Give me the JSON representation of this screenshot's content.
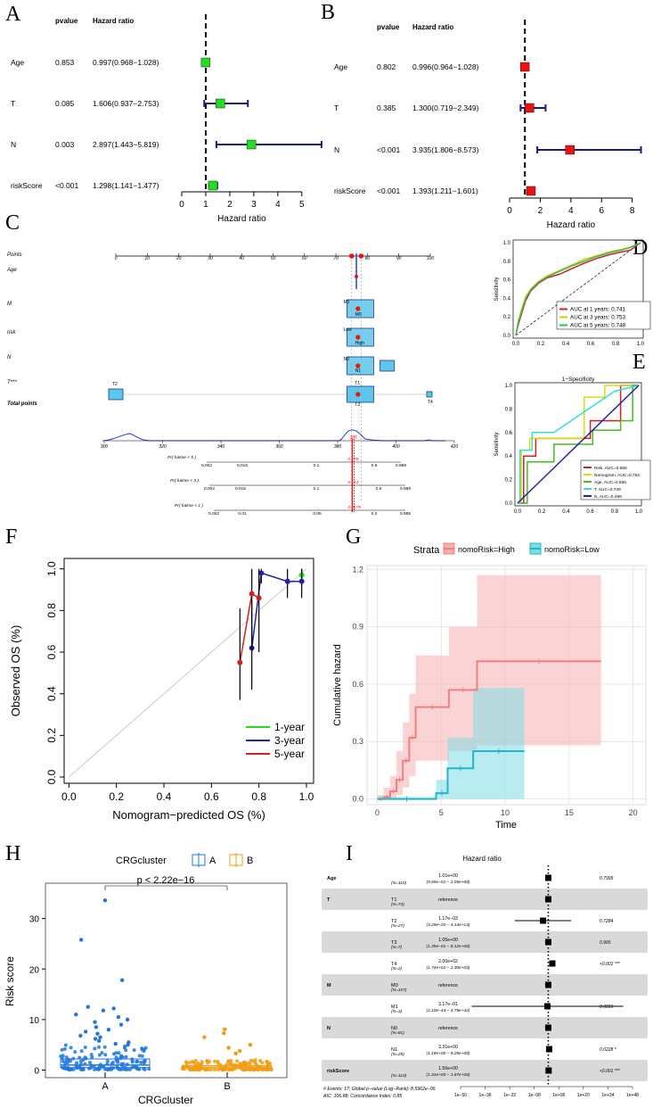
{
  "figure_labels": [
    "A",
    "B",
    "C",
    "D",
    "E",
    "F",
    "G",
    "H",
    "I"
  ],
  "chart_data": [
    {
      "panel": "A",
      "type": "forest",
      "header_pvalue": "pvalue",
      "header_hr": "Hazard ratio",
      "xlabel": "Hazard ratio",
      "xlim": [
        0,
        5.6
      ],
      "ticks": [
        "0",
        "1",
        "2",
        "3",
        "4",
        "5"
      ],
      "ref_line": 1,
      "rows": [
        {
          "label": "Age",
          "pvalue": "0.853",
          "hr_text": "0.997(0.968−1.028)",
          "hr": 0.997,
          "lo": 0.968,
          "hi": 1.028
        },
        {
          "label": "T",
          "pvalue": "0.085",
          "hr_text": "1.606(0.937−2.753)",
          "hr": 1.606,
          "lo": 0.937,
          "hi": 2.753
        },
        {
          "label": "N",
          "pvalue": "0.003",
          "hr_text": "2.897(1.443−5.819)",
          "hr": 2.897,
          "lo": 1.443,
          "hi": 5.819
        },
        {
          "label": "riskScore",
          "pvalue": "<0.001",
          "hr_text": "1.298(1.141−1.477)",
          "hr": 1.298,
          "lo": 1.141,
          "hi": 1.477
        }
      ],
      "color": "#22dd22"
    },
    {
      "panel": "B",
      "type": "forest",
      "header_pvalue": "pvalue",
      "header_hr": "Hazard ratio",
      "xlabel": "Hazard ratio",
      "xlim": [
        0,
        8.6
      ],
      "ticks": [
        "0",
        "2",
        "4",
        "6",
        "8"
      ],
      "ref_line": 1,
      "rows": [
        {
          "label": "Age",
          "pvalue": "0.802",
          "hr_text": "0.996(0.964−1.028)",
          "hr": 0.996,
          "lo": 0.964,
          "hi": 1.028
        },
        {
          "label": "T",
          "pvalue": "0.385",
          "hr_text": "1.300(0.719−2.349)",
          "hr": 1.3,
          "lo": 0.719,
          "hi": 2.349
        },
        {
          "label": "N",
          "pvalue": "<0.001",
          "hr_text": "3.935(1.806−8.573)",
          "hr": 3.935,
          "lo": 1.806,
          "hi": 8.573
        },
        {
          "label": "riskScore",
          "pvalue": "<0.001",
          "hr_text": "1.393(1.211−1.601)",
          "hr": 1.393,
          "lo": 1.211,
          "hi": 1.601
        }
      ],
      "color": "#ee1111"
    },
    {
      "panel": "C",
      "type": "nomogram",
      "rows": [
        "Points",
        "Age",
        "M",
        "risk",
        "N",
        "T***",
        "Total points"
      ],
      "points_ticks": [
        "0",
        "10",
        "20",
        "30",
        "40",
        "50",
        "60",
        "70",
        "80",
        "90",
        "100"
      ],
      "total_ticks": [
        "300",
        "320",
        "340",
        "360",
        "380",
        "400",
        "420"
      ],
      "total_value": "385",
      "level_labels": {
        "M": [
          "M1",
          "M0"
        ],
        "risk": [
          "Low",
          "High"
        ],
        "N": [
          "N0",
          "N1"
        ],
        "T": [
          "T2",
          "T1",
          "T3",
          "T4"
        ]
      },
      "prob_rows": [
        {
          "label": "Pr( futime < 5 )",
          "ticks": [
            "0.002",
            "0.015",
            "0.1",
            "0.6",
            "0.998"
          ],
          "value": "0.178"
        },
        {
          "label": "Pr( futime < 3 )",
          "ticks": [
            "0.002",
            "0.015",
            "0.1",
            "0.6",
            "0.998"
          ],
          "value": "0.133"
        },
        {
          "label": "Pr( futime < 1 )",
          "ticks": [
            "0.002",
            "0.01",
            "0.06",
            "0.4",
            "0.985"
          ],
          "value": "0.0179"
        }
      ]
    },
    {
      "panel": "D",
      "type": "line",
      "xlabel": "1−Specificity",
      "ylabel": "Sensitivity",
      "xlim": [
        0,
        1
      ],
      "ylim": [
        0,
        1
      ],
      "ticks": [
        "0.0",
        "0.2",
        "0.4",
        "0.6",
        "0.8",
        "1.0"
      ],
      "legend_position": "bottom-right",
      "series": [
        {
          "name": "AUC at 1 years: 0.741",
          "color": "#cc2222",
          "x": [
            0,
            0.02,
            0.05,
            0.08,
            0.12,
            0.18,
            0.25,
            0.35,
            0.45,
            0.55,
            0.65,
            0.75,
            0.85,
            0.92,
            1.0
          ],
          "y": [
            0,
            0.12,
            0.25,
            0.38,
            0.48,
            0.56,
            0.62,
            0.66,
            0.72,
            0.78,
            0.83,
            0.87,
            0.9,
            0.92,
            1.0
          ]
        },
        {
          "name": "AUC at 3 years: 0.753",
          "color": "#cccc00",
          "x": [
            0,
            0.02,
            0.05,
            0.08,
            0.12,
            0.18,
            0.25,
            0.35,
            0.45,
            0.55,
            0.65,
            0.75,
            0.85,
            0.92,
            1.0
          ],
          "y": [
            0,
            0.16,
            0.3,
            0.42,
            0.5,
            0.58,
            0.64,
            0.7,
            0.76,
            0.82,
            0.86,
            0.9,
            0.93,
            0.95,
            1.0
          ]
        },
        {
          "name": "AUC at 5 years: 0.748",
          "color": "#33bb66",
          "x": [
            0,
            0.02,
            0.05,
            0.08,
            0.12,
            0.18,
            0.25,
            0.35,
            0.45,
            0.55,
            0.65,
            0.75,
            0.85,
            0.92,
            1.0
          ],
          "y": [
            0,
            0.14,
            0.27,
            0.4,
            0.49,
            0.57,
            0.63,
            0.69,
            0.75,
            0.8,
            0.85,
            0.89,
            0.92,
            0.95,
            1.0
          ]
        }
      ]
    },
    {
      "panel": "E",
      "type": "line",
      "title": "1−Specificity",
      "xlabel": "1−Specificity",
      "ylabel": "Sensitivity",
      "xlim": [
        0,
        1
      ],
      "ylim": [
        0,
        1
      ],
      "ticks": [
        "0.0",
        "0.2",
        "0.4",
        "0.6",
        "0.8",
        "1.0"
      ],
      "legend_position": "bottom-right",
      "series": [
        {
          "name": "Risk, AUC=0.665",
          "color": "#cc2222",
          "x": [
            0,
            0.05,
            0.05,
            0.15,
            0.15,
            0.6,
            0.6,
            0.85,
            0.85,
            1.0
          ],
          "y": [
            0,
            0,
            0.4,
            0.4,
            0.55,
            0.55,
            0.7,
            0.7,
            1.0,
            1.0
          ]
        },
        {
          "name": "Nomogram, AUC=0.752",
          "color": "#dddd00",
          "x": [
            0,
            0.03,
            0.03,
            0.1,
            0.1,
            0.55,
            0.55,
            0.72,
            0.72,
            1.0
          ],
          "y": [
            0,
            0,
            0.45,
            0.45,
            0.55,
            0.55,
            0.9,
            0.9,
            1.0,
            1.0
          ]
        },
        {
          "name": "Age, AUC=0.595",
          "color": "#44bb22",
          "x": [
            0,
            0.08,
            0.08,
            0.3,
            0.3,
            0.62,
            0.62,
            0.85,
            0.85,
            0.95,
            0.95,
            1.0
          ],
          "y": [
            0,
            0,
            0.35,
            0.35,
            0.5,
            0.5,
            0.62,
            0.62,
            0.7,
            0.7,
            1.0,
            1.0
          ]
        },
        {
          "name": "T, AUC=0.739",
          "color": "#33dddd",
          "x": [
            0,
            0.02,
            0.02,
            0.12,
            0.12,
            0.3,
            0.8,
            1.0
          ],
          "y": [
            0,
            0,
            0.45,
            0.45,
            0.6,
            0.6,
            0.95,
            1.0
          ]
        },
        {
          "name": "N, AUC=0.499",
          "color": "#2222aa",
          "x": [
            0,
            1.0
          ],
          "y": [
            0,
            1.0
          ]
        }
      ]
    },
    {
      "panel": "F",
      "type": "line",
      "xlabel": "Nomogram−predicted OS (%)",
      "ylabel": "Observed OS (%)",
      "xlim": [
        -0.02,
        1.03
      ],
      "ylim": [
        -0.03,
        1.05
      ],
      "xticks": [
        "0.0",
        "0.2",
        "0.4",
        "0.6",
        "0.8",
        "1.0"
      ],
      "yticks": [
        "0.0",
        "0.2",
        "0.4",
        "0.6",
        "0.8",
        "1.0"
      ],
      "legend_position": "bottom-right",
      "series": [
        {
          "name": "1-year",
          "color": "#22dd22",
          "x": [
            0.98
          ],
          "y": [
            0.97
          ],
          "lo": [
            0.92
          ],
          "hi": [
            1.0
          ]
        },
        {
          "name": "3-year",
          "color": "#2222aa",
          "x": [
            0.77,
            0.81,
            0.92,
            0.98
          ],
          "y": [
            0.62,
            0.98,
            0.94,
            0.94
          ],
          "lo": [
            0.42,
            0.93,
            0.86,
            0.86
          ],
          "hi": [
            0.85,
            1.0,
            1.0,
            1.0
          ]
        },
        {
          "name": "5-year",
          "color": "#cc2222",
          "x": [
            0.72,
            0.77,
            0.8
          ],
          "y": [
            0.55,
            0.88,
            0.86
          ],
          "lo": [
            0.37,
            0.6,
            0.6
          ],
          "hi": [
            0.81,
            1.0,
            1.0
          ]
        }
      ]
    },
    {
      "panel": "G",
      "type": "line",
      "legend_title": "Strata",
      "xlabel": "Time",
      "ylabel": "Cumulative hazard",
      "xlim": [
        -0.8,
        21
      ],
      "ylim": [
        -0.03,
        1.22
      ],
      "xticks": [
        "0",
        "5",
        "10",
        "15",
        "20"
      ],
      "yticks": [
        "0.0",
        "0.3",
        "0.6",
        "0.9",
        "1.2"
      ],
      "series": [
        {
          "name": "nomoRisk=High",
          "color": "#f08080",
          "fill": "#f6b0b0",
          "x": [
            0,
            0.5,
            1,
            1.5,
            2,
            2.5,
            3,
            5.6,
            7.8,
            17.5
          ],
          "y": [
            0,
            0.01,
            0.04,
            0.1,
            0.2,
            0.32,
            0.48,
            0.57,
            0.72,
            0.72
          ],
          "lo": [
            0,
            0,
            0,
            0.02,
            0.06,
            0.12,
            0.2,
            0.25,
            0.28,
            0.28
          ],
          "hi": [
            0.02,
            0.06,
            0.12,
            0.25,
            0.4,
            0.55,
            0.75,
            0.9,
            1.17,
            1.17
          ]
        },
        {
          "name": "nomoRisk=Low",
          "color": "#20b8c8",
          "fill": "#7fdde4",
          "x": [
            0,
            4.6,
            5.5,
            7.5,
            11.5
          ],
          "y": [
            0,
            0.03,
            0.16,
            0.25,
            0.25
          ],
          "lo": [
            0,
            0,
            0,
            0,
            0
          ],
          "hi": [
            0.01,
            0.1,
            0.32,
            0.58,
            0.58
          ]
        }
      ]
    },
    {
      "panel": "H",
      "type": "box",
      "legend_title": "CRGcluster",
      "categories": [
        "A",
        "B"
      ],
      "xlabel": "CRGcluster",
      "ylabel": "Risk score",
      "ylim": [
        -1.5,
        37
      ],
      "yticks": [
        "0",
        "10",
        "20",
        "30"
      ],
      "annotation": "p < 2.22e−16",
      "series": [
        {
          "name": "A",
          "color": "#1f77e0",
          "q1": 0.5,
          "median": 1.0,
          "q3": 2.2,
          "outliers": [
            33.6,
            25.8,
            17.8,
            12.5,
            12.2,
            11.8,
            11,
            10.5,
            10,
            9.5,
            9,
            8.5,
            8,
            7.6,
            7.2,
            6.8,
            6.5,
            6.2,
            5.8,
            5.5,
            5.2,
            5
          ]
        },
        {
          "name": "B",
          "color": "#f29c11",
          "q1": 0.3,
          "median": 0.6,
          "q3": 0.9,
          "outliers": [
            8.1,
            7.3,
            6.5,
            5,
            4.4,
            3.8,
            3.3
          ]
        }
      ]
    },
    {
      "panel": "I",
      "type": "table",
      "title": "Hazard ratio",
      "xticks": [
        "1e−50",
        "1e−36",
        "1e−22",
        "1e−08",
        "1e+06",
        "1e+20",
        "1e+34",
        "1e+48"
      ],
      "footer": [
        "# Events: 17; Global p−value (Log−Rank): 8.5962e−06",
        "AIC: 106.88; Concordance Index: 0.85"
      ],
      "rows": [
        {
          "var": "Age",
          "level": "",
          "n": "(N=110)",
          "est": "1.01e+00",
          "ci": "(9.65e−01 − 1.05e+00)",
          "p": "0.7999",
          "shade": false,
          "hr": 0,
          "lo": -0.5,
          "hi": 0.5
        },
        {
          "var": "T",
          "level": "T1",
          "n": "(N=74)",
          "est": "reference",
          "ci": "",
          "p": "",
          "shade": true,
          "hr": 0,
          "lo": 0,
          "hi": 0
        },
        {
          "var": "",
          "level": "T2",
          "n": "(N=27)",
          "est": "1.17e−03",
          "ci": "(3.29e−20 − 4.14e+13)",
          "p": "0.7284",
          "shade": false,
          "hr": -3,
          "lo": -19,
          "hi": 13
        },
        {
          "var": "",
          "level": "T3",
          "n": "(N=7)",
          "est": "1.05e+00",
          "ci": "(1.35e−01 − 8.12e+00)",
          "p": "0.965",
          "shade": true,
          "hr": 0,
          "lo": -0.9,
          "hi": 0.9
        },
        {
          "var": "",
          "level": "T4",
          "n": "(N=2)",
          "est": "2.00e+02",
          "ci": "(1.74e+01 − 2.30e+03)",
          "p": "<0.001 ***",
          "shade": false,
          "hr": 2.3,
          "lo": 1.2,
          "hi": 3.4
        },
        {
          "var": "M",
          "level": "M0",
          "n": "(N=107)",
          "est": "reference",
          "ci": "",
          "p": "",
          "shade": true,
          "hr": 0,
          "lo": 0,
          "hi": 0
        },
        {
          "var": "",
          "level": "M1",
          "n": "(N=3)",
          "est": "3.17e−01",
          "ci": "(2.10e−44 − 4.79e+42)",
          "p": "0.9819",
          "shade": false,
          "hr": -0.5,
          "lo": -43.7,
          "hi": 42.7
        },
        {
          "var": "N",
          "level": "N0",
          "n": "(N=81)",
          "est": "reference",
          "ci": "",
          "p": "",
          "shade": true,
          "hr": 0,
          "lo": 0,
          "hi": 0
        },
        {
          "var": "",
          "level": "N1",
          "n": "(N=29)",
          "est": "3.31e+00",
          "ci": "(1.18e+00 − 9.28e+00)",
          "p": "0.0228 *",
          "shade": false,
          "hr": 0.5,
          "lo": 0.07,
          "hi": 0.97
        },
        {
          "var": "riskScore",
          "level": "",
          "n": "(N=110)",
          "est": "1.56e+00",
          "ci": "(1.31e+00 − 1.87e+00)",
          "p": "<0.001 ***",
          "shade": true,
          "hr": 0.19,
          "lo": 0.12,
          "hi": 0.27
        }
      ]
    }
  ]
}
